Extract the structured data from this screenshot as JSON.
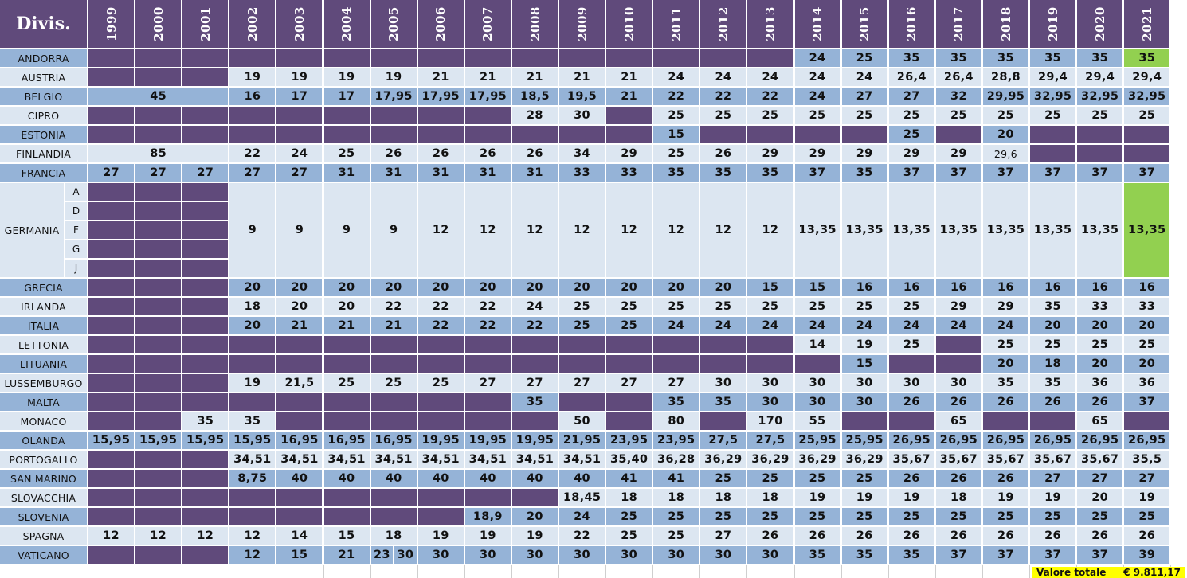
{
  "sheet": {
    "title": "Divis.",
    "years": [
      "1999",
      "2000",
      "2001",
      "2002",
      "2003",
      "2004",
      "2005",
      "2006",
      "2007",
      "2008",
      "2009",
      "2010",
      "2011",
      "2012",
      "2013",
      "2014",
      "2015",
      "2016",
      "2017",
      "2018",
      "2019",
      "2020",
      "2021"
    ],
    "colors": {
      "header": "#604a7b",
      "row_dark": "#95b3d7",
      "row_light": "#dce6f1",
      "missing": "#604a7b",
      "highlight": "#92d050",
      "total": "#ffff00"
    },
    "rows": [
      {
        "country": "ANDORRA",
        "shade": "dark",
        "cells": [
          null,
          null,
          null,
          null,
          null,
          null,
          null,
          null,
          null,
          null,
          null,
          null,
          null,
          null,
          null,
          "24",
          "25",
          "35",
          "35",
          "35",
          "35",
          "35",
          {
            "v": "35",
            "hl": true
          }
        ]
      },
      {
        "country": "AUSTRIA",
        "shade": "light",
        "cells": [
          null,
          null,
          null,
          "19",
          "19",
          "19",
          "19",
          "21",
          "21",
          "21",
          "21",
          "21",
          "24",
          "24",
          "24",
          "24",
          "24",
          "26,4",
          "26,4",
          "28,8",
          "29,4",
          "29,4",
          "29,4"
        ]
      },
      {
        "country": "BELGIO",
        "shade": "dark",
        "cells": [
          {
            "v": "45",
            "span": 3
          },
          "16",
          "17",
          "17",
          "17,95",
          "17,95",
          "17,95",
          "18,5",
          "19,5",
          "21",
          "22",
          "22",
          "22",
          "24",
          "27",
          "27",
          "32",
          "29,95",
          "32,95",
          "32,95",
          "32,95"
        ]
      },
      {
        "country": "CIPRO",
        "shade": "light",
        "cells": [
          null,
          null,
          null,
          null,
          null,
          null,
          null,
          null,
          null,
          "28",
          "30",
          null,
          "25",
          "25",
          "25",
          "25",
          "25",
          "25",
          "25",
          "25",
          "25",
          "25",
          "25"
        ]
      },
      {
        "country": "ESTONIA",
        "shade": "dark",
        "cells": [
          null,
          null,
          null,
          null,
          null,
          null,
          null,
          null,
          null,
          null,
          null,
          null,
          "15",
          null,
          null,
          null,
          null,
          "25",
          null,
          "20",
          null,
          null,
          null
        ]
      },
      {
        "country": "FINLANDIA",
        "shade": "light",
        "cells": [
          {
            "v": "85",
            "span": 3
          },
          "22",
          "24",
          "25",
          "26",
          "26",
          "26",
          "26",
          "34",
          "29",
          "25",
          "26",
          "29",
          "29",
          "29",
          "29",
          "29",
          {
            "v": "29,6",
            "small": true
          },
          null,
          null,
          null
        ]
      },
      {
        "country": "FRANCIA",
        "shade": "dark",
        "cells": [
          "27",
          "27",
          "27",
          "27",
          "27",
          "31",
          "31",
          "31",
          "31",
          "31",
          "33",
          "33",
          "35",
          "35",
          "35",
          "37",
          "35",
          "37",
          "37",
          "37",
          "37",
          "37",
          "37"
        ]
      },
      {
        "country": "GERMANIA",
        "shade": "light",
        "tall": true,
        "subs": [
          "A",
          "D",
          "F",
          "G",
          "J"
        ],
        "cells": [
          {
            "v": null,
            "stack": 5
          },
          {
            "v": null,
            "stack": 5
          },
          {
            "v": null,
            "stack": 5
          },
          "9",
          "9",
          "9",
          "9",
          "12",
          "12",
          "12",
          "12",
          "12",
          "12",
          "12",
          "12",
          "13,35",
          "13,35",
          "13,35",
          "13,35",
          "13,35",
          "13,35",
          "13,35",
          {
            "v": "13,35",
            "hl": true
          }
        ]
      },
      {
        "country": "GRECIA",
        "shade": "dark",
        "cells": [
          null,
          null,
          null,
          "20",
          "20",
          "20",
          "20",
          "20",
          "20",
          "20",
          "20",
          "20",
          "20",
          "20",
          "15",
          "15",
          "16",
          "16",
          "16",
          "16",
          "16",
          "16",
          "16"
        ]
      },
      {
        "country": "IRLANDA",
        "shade": "light",
        "cells": [
          null,
          null,
          null,
          "18",
          "20",
          "20",
          "22",
          "22",
          "22",
          "24",
          "25",
          "25",
          "25",
          "25",
          "25",
          "25",
          "25",
          "25",
          "29",
          "29",
          "35",
          "33",
          "33"
        ]
      },
      {
        "country": "ITALIA",
        "shade": "dark",
        "cells": [
          null,
          null,
          null,
          "20",
          "21",
          "21",
          "21",
          "22",
          "22",
          "22",
          "25",
          "25",
          "24",
          "24",
          "24",
          "24",
          "24",
          "24",
          "24",
          "24",
          "20",
          "20",
          "20"
        ]
      },
      {
        "country": "LETTONIA",
        "shade": "light",
        "cells": [
          null,
          null,
          null,
          null,
          null,
          null,
          null,
          null,
          null,
          null,
          null,
          null,
          null,
          null,
          null,
          "14",
          "19",
          "25",
          null,
          "25",
          "25",
          "25",
          "25"
        ]
      },
      {
        "country": "LITUANIA",
        "shade": "dark",
        "cells": [
          null,
          null,
          null,
          null,
          null,
          null,
          null,
          null,
          null,
          null,
          null,
          null,
          null,
          null,
          null,
          null,
          "15",
          null,
          null,
          "20",
          "18",
          "20",
          "20"
        ]
      },
      {
        "country": "LUSSEMBURGO",
        "shade": "light",
        "cells": [
          null,
          null,
          null,
          "19",
          "21,5",
          "25",
          "25",
          "25",
          "27",
          "27",
          "27",
          "27",
          "27",
          "30",
          "30",
          "30",
          "30",
          "30",
          "30",
          "35",
          "35",
          "36",
          "36"
        ]
      },
      {
        "country": "MALTA",
        "shade": "dark",
        "cells": [
          null,
          null,
          null,
          null,
          null,
          null,
          null,
          null,
          null,
          "35",
          null,
          null,
          "35",
          "35",
          "30",
          "30",
          "30",
          "26",
          "26",
          "26",
          "26",
          "26",
          "37"
        ]
      },
      {
        "country": "MONACO",
        "shade": "light",
        "cells": [
          null,
          null,
          "35",
          "35",
          null,
          null,
          null,
          null,
          null,
          null,
          "50",
          null,
          "80",
          null,
          "170",
          "55",
          null,
          null,
          "65",
          null,
          null,
          "65",
          null
        ]
      },
      {
        "country": "OLANDA",
        "shade": "dark",
        "cells": [
          "15,95",
          "15,95",
          "15,95",
          "15,95",
          "16,95",
          "16,95",
          "16,95",
          "19,95",
          "19,95",
          "19,95",
          "21,95",
          "23,95",
          "23,95",
          "27,5",
          "27,5",
          "25,95",
          "25,95",
          "26,95",
          "26,95",
          "26,95",
          "26,95",
          "26,95",
          "26,95"
        ]
      },
      {
        "country": "PORTOGALLO",
        "shade": "light",
        "cells": [
          null,
          null,
          null,
          "34,51",
          "34,51",
          "34,51",
          "34,51",
          "34,51",
          "34,51",
          "34,51",
          "34,51",
          "35,40",
          "36,28",
          "36,29",
          "36,29",
          "36,29",
          "36,29",
          "35,67",
          "35,67",
          "35,67",
          "35,67",
          "35,67",
          "35,5"
        ]
      },
      {
        "country": "SAN MARINO",
        "shade": "dark",
        "cells": [
          null,
          null,
          null,
          "8,75",
          "40",
          "40",
          "40",
          "40",
          "40",
          "40",
          "40",
          "41",
          "41",
          "25",
          "25",
          "25",
          "25",
          "26",
          "26",
          "26",
          "27",
          "27",
          "27"
        ]
      },
      {
        "country": "SLOVACCHIA",
        "shade": "light",
        "cells": [
          null,
          null,
          null,
          null,
          null,
          null,
          null,
          null,
          null,
          null,
          "18,45",
          "18",
          "18",
          "18",
          "18",
          "19",
          "19",
          "19",
          "18",
          "19",
          "19",
          "20",
          "19"
        ]
      },
      {
        "country": "SLOVENIA",
        "shade": "dark",
        "cells": [
          null,
          null,
          null,
          null,
          null,
          null,
          null,
          null,
          "18,9",
          "20",
          "24",
          "25",
          "25",
          "25",
          "25",
          "25",
          "25",
          "25",
          "25",
          "25",
          "25",
          "25",
          "25"
        ]
      },
      {
        "country": "SPAGNA",
        "shade": "light",
        "cells": [
          "12",
          "12",
          "12",
          "12",
          "14",
          "15",
          "18",
          "19",
          "19",
          "19",
          "22",
          "25",
          "25",
          "27",
          "26",
          "26",
          "26",
          "26",
          "26",
          "26",
          "26",
          "26",
          "26"
        ]
      },
      {
        "country": "VATICANO",
        "shade": "dark",
        "cells": [
          null,
          null,
          null,
          "12",
          "15",
          "21",
          {
            "split": [
              "23",
              "30"
            ]
          },
          "30",
          "30",
          "30",
          "30",
          "30",
          "30",
          "30",
          "30",
          "35",
          "35",
          "35",
          "37",
          "37",
          "37",
          "37",
          "39"
        ]
      }
    ],
    "footer": {
      "label": "Valore totale",
      "value": "€ 9.811,17"
    }
  }
}
